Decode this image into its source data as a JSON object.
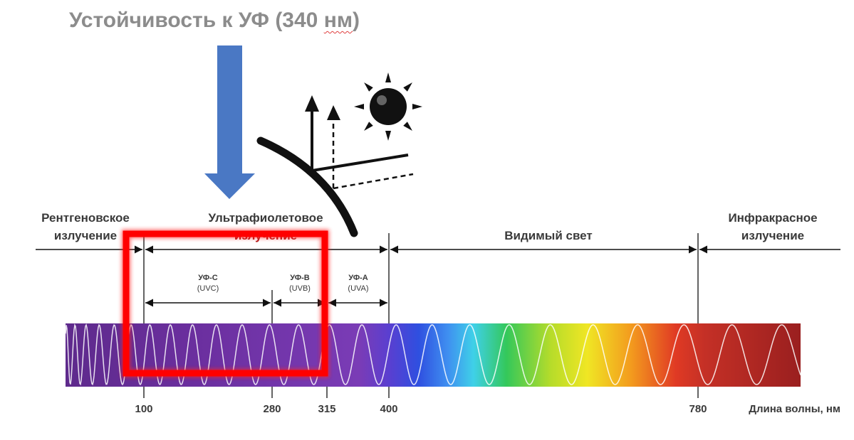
{
  "title": {
    "prefix": "Устойчивость к УФ (340 ",
    "unit": "нм",
    "suffix": ")"
  },
  "regions": {
    "xray_line1": "Рентгеновское",
    "xray_line2": "излучение",
    "uv_line1": "Ультрафиолетовое",
    "uv_line2": "излучение",
    "visible": "Видимый свет",
    "ir_line1": "Инфракрасное",
    "ir_line2": "излучение"
  },
  "uv_bands": [
    {
      "line1": "УФ-С",
      "line2": "(UVC)"
    },
    {
      "line1": "УФ-В",
      "line2": "(UVB)"
    },
    {
      "line1": "УФ-А",
      "line2": "(UVA)"
    }
  ],
  "ticks": [
    "100",
    "280",
    "315",
    "400",
    "780"
  ],
  "axis_label": "Длина волны, нм",
  "colors": {
    "title": "#8c8c8c",
    "pointer_arrow": "#4a78c4",
    "highlight_box": "#ff0000",
    "uv_band": "#6f2ca0",
    "ir_band": "#9a1f1f"
  },
  "icons": [
    "down-arrow-icon",
    "sun-icon",
    "reflection-icon"
  ]
}
